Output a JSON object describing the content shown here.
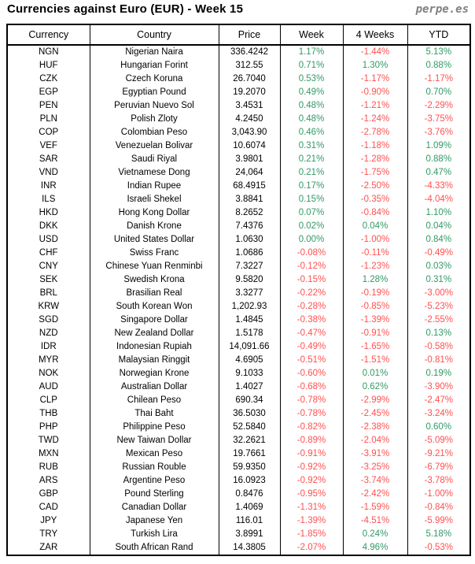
{
  "page": {
    "title": "Currencies against Euro (EUR) - Week 15",
    "logo": "perpe.es"
  },
  "colors": {
    "positive": "#339966",
    "negative": "#FF5050",
    "logo_gray": "#808080",
    "border": "#000000"
  },
  "table": {
    "headers": [
      "Currency",
      "Country",
      "Price",
      "Week",
      "4 Weeks",
      "YTD"
    ],
    "rows": [
      {
        "currency": "NGN",
        "country": "Nigerian Naira",
        "price": "336.4242",
        "week": "1.17%",
        "four_weeks": "-1.44%",
        "ytd": "5.13%"
      },
      {
        "currency": "HUF",
        "country": "Hungarian Forint",
        "price": "312.55",
        "week": "0.71%",
        "four_weeks": "1.30%",
        "ytd": "0.88%"
      },
      {
        "currency": "CZK",
        "country": "Czech Koruna",
        "price": "26.7040",
        "week": "0.53%",
        "four_weeks": "-1.17%",
        "ytd": "-1.17%"
      },
      {
        "currency": "EGP",
        "country": "Egyptian Pound",
        "price": "19.2070",
        "week": "0.49%",
        "four_weeks": "-0.90%",
        "ytd": "0.70%"
      },
      {
        "currency": "PEN",
        "country": "Peruvian Nuevo Sol",
        "price": "3.4531",
        "week": "0.48%",
        "four_weeks": "-1.21%",
        "ytd": "-2.29%"
      },
      {
        "currency": "PLN",
        "country": "Polish Zloty",
        "price": "4.2450",
        "week": "0.48%",
        "four_weeks": "-1.24%",
        "ytd": "-3.75%"
      },
      {
        "currency": "COP",
        "country": "Colombian Peso",
        "price": "3,043.90",
        "week": "0.46%",
        "four_weeks": "-2.78%",
        "ytd": "-3.76%"
      },
      {
        "currency": "VEF",
        "country": "Venezuelan Bolivar",
        "price": "10.6074",
        "week": "0.31%",
        "four_weeks": "-1.18%",
        "ytd": "1.09%"
      },
      {
        "currency": "SAR",
        "country": "Saudi Riyal",
        "price": "3.9801",
        "week": "0.21%",
        "four_weeks": "-1.28%",
        "ytd": "0.88%"
      },
      {
        "currency": "VND",
        "country": "Vietnamese Dong",
        "price": "24,064",
        "week": "0.21%",
        "four_weeks": "-1.75%",
        "ytd": "0.47%"
      },
      {
        "currency": "INR",
        "country": "Indian Rupee",
        "price": "68.4915",
        "week": "0.17%",
        "four_weeks": "-2.50%",
        "ytd": "-4.33%"
      },
      {
        "currency": "ILS",
        "country": "Israeli Shekel",
        "price": "3.8841",
        "week": "0.15%",
        "four_weeks": "-0.35%",
        "ytd": "-4.04%"
      },
      {
        "currency": "HKD",
        "country": "Hong Kong Dollar",
        "price": "8.2652",
        "week": "0.07%",
        "four_weeks": "-0.84%",
        "ytd": "1.10%"
      },
      {
        "currency": "DKK",
        "country": "Danish Krone",
        "price": "7.4376",
        "week": "0.02%",
        "four_weeks": "0.04%",
        "ytd": "0.04%"
      },
      {
        "currency": "USD",
        "country": "United States Dollar",
        "price": "1.0630",
        "week": "0.00%",
        "four_weeks": "-1.00%",
        "ytd": "0.84%"
      },
      {
        "currency": "CHF",
        "country": "Swiss Franc",
        "price": "1.0686",
        "week": "-0.08%",
        "four_weeks": "-0.11%",
        "ytd": "-0.49%"
      },
      {
        "currency": "CNY",
        "country": "Chinese Yuan Renminbi",
        "price": "7.3227",
        "week": "-0.12%",
        "four_weeks": "-1.23%",
        "ytd": "0.03%"
      },
      {
        "currency": "SEK",
        "country": "Swedish Krona",
        "price": "9.5820",
        "week": "-0.15%",
        "four_weeks": "1.28%",
        "ytd": "0.31%"
      },
      {
        "currency": "BRL",
        "country": "Brasilian Real",
        "price": "3.3277",
        "week": "-0.22%",
        "four_weeks": "-0.19%",
        "ytd": "-3.00%"
      },
      {
        "currency": "KRW",
        "country": "South Korean Won",
        "price": "1,202.93",
        "week": "-0.28%",
        "four_weeks": "-0.85%",
        "ytd": "-5.23%"
      },
      {
        "currency": "SGD",
        "country": "Singapore Dollar",
        "price": "1.4845",
        "week": "-0.38%",
        "four_weeks": "-1.39%",
        "ytd": "-2.55%"
      },
      {
        "currency": "NZD",
        "country": "New Zealand Dollar",
        "price": "1.5178",
        "week": "-0.47%",
        "four_weeks": "-0.91%",
        "ytd": "0.13%"
      },
      {
        "currency": "IDR",
        "country": "Indonesian Rupiah",
        "price": "14,091.66",
        "week": "-0.49%",
        "four_weeks": "-1.65%",
        "ytd": "-0.58%"
      },
      {
        "currency": "MYR",
        "country": "Malaysian Ringgit",
        "price": "4.6905",
        "week": "-0.51%",
        "four_weeks": "-1.51%",
        "ytd": "-0.81%"
      },
      {
        "currency": "NOK",
        "country": "Norwegian Krone",
        "price": "9.1033",
        "week": "-0.60%",
        "four_weeks": "0.01%",
        "ytd": "0.19%"
      },
      {
        "currency": "AUD",
        "country": "Australian Dollar",
        "price": "1.4027",
        "week": "-0.68%",
        "four_weeks": "0.62%",
        "ytd": "-3.90%"
      },
      {
        "currency": "CLP",
        "country": "Chilean Peso",
        "price": "690.34",
        "week": "-0.78%",
        "four_weeks": "-2.99%",
        "ytd": "-2.47%"
      },
      {
        "currency": "THB",
        "country": "Thai Baht",
        "price": "36.5030",
        "week": "-0.78%",
        "four_weeks": "-2.45%",
        "ytd": "-3.24%"
      },
      {
        "currency": "PHP",
        "country": "Philippine Peso",
        "price": "52.5840",
        "week": "-0.82%",
        "four_weeks": "-2.38%",
        "ytd": "0.60%"
      },
      {
        "currency": "TWD",
        "country": "New Taiwan Dollar",
        "price": "32.2621",
        "week": "-0.89%",
        "four_weeks": "-2.04%",
        "ytd": "-5.09%"
      },
      {
        "currency": "MXN",
        "country": "Mexican Peso",
        "price": "19.7661",
        "week": "-0.91%",
        "four_weeks": "-3.91%",
        "ytd": "-9.21%"
      },
      {
        "currency": "RUB",
        "country": "Russian Rouble",
        "price": "59.9350",
        "week": "-0.92%",
        "four_weeks": "-3.25%",
        "ytd": "-6.79%"
      },
      {
        "currency": "ARS",
        "country": "Argentine Peso",
        "price": "16.0923",
        "week": "-0.92%",
        "four_weeks": "-3.74%",
        "ytd": "-3.78%"
      },
      {
        "currency": "GBP",
        "country": "Pound Sterling",
        "price": "0.8476",
        "week": "-0.95%",
        "four_weeks": "-2.42%",
        "ytd": "-1.00%"
      },
      {
        "currency": "CAD",
        "country": "Canadian Dollar",
        "price": "1.4069",
        "week": "-1.31%",
        "four_weeks": "-1.59%",
        "ytd": "-0.84%"
      },
      {
        "currency": "JPY",
        "country": "Japanese Yen",
        "price": "116.01",
        "week": "-1.39%",
        "four_weeks": "-4.51%",
        "ytd": "-5.99%"
      },
      {
        "currency": "TRY",
        "country": "Turkish Lira",
        "price": "3.8991",
        "week": "-1.85%",
        "four_weeks": "0.24%",
        "ytd": "5.18%"
      },
      {
        "currency": "ZAR",
        "country": "South African Rand",
        "price": "14.3805",
        "week": "-2.07%",
        "four_weeks": "4.96%",
        "ytd": "-0.53%"
      }
    ]
  }
}
